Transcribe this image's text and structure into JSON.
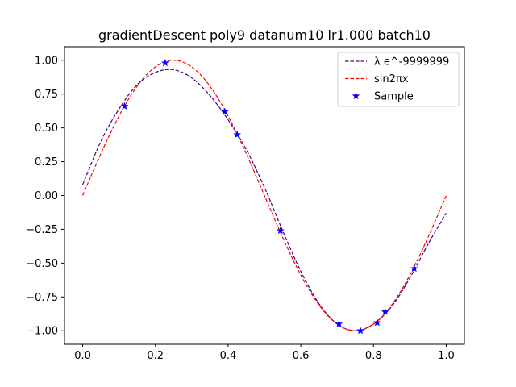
{
  "chart_data": {
    "type": "line",
    "title": "gradientDescent poly9 datanum10 lr1.000 batch10",
    "xlabel": "",
    "ylabel": "",
    "xlim": [
      -0.05,
      1.05
    ],
    "ylim": [
      -1.1,
      1.1
    ],
    "xticks": [
      0.0,
      0.2,
      0.4,
      0.6,
      0.8,
      1.0
    ],
    "xtick_labels": [
      "0.0",
      "0.2",
      "0.4",
      "0.6",
      "0.8",
      "1.0"
    ],
    "yticks": [
      -1.0,
      -0.75,
      -0.5,
      -0.25,
      0.0,
      0.25,
      0.5,
      0.75,
      1.0
    ],
    "ytick_labels": [
      "−1.00",
      "−0.75",
      "−0.50",
      "−0.25",
      "0.00",
      "0.25",
      "0.50",
      "0.75",
      "1.00"
    ],
    "grid": false,
    "legend_position": "top-right",
    "series": [
      {
        "name": "λ e^-9999999",
        "kind": "line",
        "style": "dashed",
        "color": "#4b0082",
        "x": [
          0.0,
          0.05,
          0.1,
          0.15,
          0.2,
          0.25,
          0.3,
          0.35,
          0.4,
          0.45,
          0.5,
          0.55,
          0.6,
          0.65,
          0.7,
          0.75,
          0.8,
          0.85,
          0.9,
          0.95,
          1.0
        ],
        "y": [
          0.08,
          0.4,
          0.64,
          0.82,
          0.91,
          0.93,
          0.87,
          0.74,
          0.56,
          0.34,
          0.06,
          -0.26,
          -0.56,
          -0.8,
          -0.95,
          -1.0,
          -0.95,
          -0.82,
          -0.61,
          -0.36,
          -0.13
        ]
      },
      {
        "name": "sin2πx",
        "kind": "line",
        "style": "dashed",
        "color": "#ff0000",
        "function": "sin(2*pi*x)",
        "x_range": [
          0,
          1
        ]
      },
      {
        "name": "Sample",
        "kind": "scatter",
        "marker": "star",
        "color": "#0000ff",
        "x": [
          0.115,
          0.227,
          0.391,
          0.425,
          0.544,
          0.705,
          0.764,
          0.81,
          0.832,
          0.912
        ],
        "y": [
          0.66,
          0.98,
          0.62,
          0.45,
          -0.26,
          -0.95,
          -1.0,
          -0.94,
          -0.86,
          -0.54
        ]
      }
    ]
  }
}
